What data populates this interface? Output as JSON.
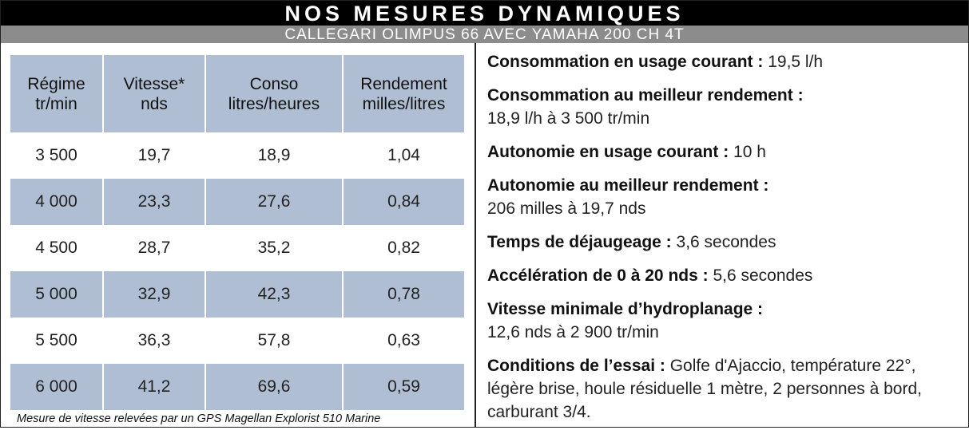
{
  "title": "NOS MESURES DYNAMIQUES",
  "subtitle": "CALLEGARI OLIMPUS 66 AVEC YAMAHA 200 CH 4T",
  "table": {
    "headers": [
      {
        "line1": "Régime",
        "line2": "tr/min"
      },
      {
        "line1": "Vitesse*",
        "line2": "nds"
      },
      {
        "line1": "Conso",
        "line2": "litres/heures"
      },
      {
        "line1": "Rendement",
        "line2": "milles/litres"
      }
    ],
    "rows": [
      [
        "3 500",
        "19,7",
        "18,9",
        "1,04"
      ],
      [
        "4 000",
        "23,3",
        "27,6",
        "0,84"
      ],
      [
        "4 500",
        "28,7",
        "35,2",
        "0,82"
      ],
      [
        "5 000",
        "32,9",
        "42,3",
        "0,78"
      ],
      [
        "5 500",
        "36,3",
        "57,8",
        "0,63"
      ],
      [
        "6 000",
        "41,2",
        "69,6",
        "0,59"
      ]
    ],
    "footnote": "Mesure de vitesse relevées par un GPS Magellan Explorist 510 Marine"
  },
  "specs": [
    {
      "label": "Consommation en usage courant :",
      "value": "19,5 l/h"
    },
    {
      "label": "Consommation au meilleur rendement :",
      "value": "18,9 l/h à 3 500 tr/min",
      "newline": true
    },
    {
      "label": "Autonomie en usage courant :",
      "value": "10 h"
    },
    {
      "label": "Autonomie au meilleur rendement :",
      "value": "206 milles à 19,7 nds",
      "newline": true
    },
    {
      "label": "Temps de déjaugeage :",
      "value": "3,6 secondes"
    },
    {
      "label": "Accélération de 0 à 20 nds :",
      "value": "5,6 secondes"
    },
    {
      "label": "Vitesse minimale d’hydroplanage :",
      "value": "12,6 nds à 2 900 tr/min",
      "newline": true
    },
    {
      "label": "Conditions de l’essai :",
      "value": "Golfe d'Ajaccio, température 22°, légère brise, houle résiduelle 1 mètre, 2 personnes à bord, carburant 3/4."
    }
  ]
}
